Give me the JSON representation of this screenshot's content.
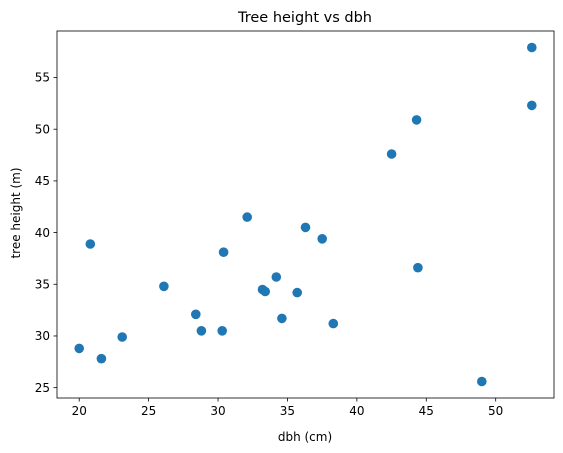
{
  "chart_data": {
    "type": "scatter",
    "title": "Tree height vs dbh",
    "xlabel": "dbh (cm)",
    "ylabel": "tree height (m)",
    "xlim": [
      18.4,
      54.2
    ],
    "ylim": [
      24.0,
      59.5
    ],
    "xticks": [
      20,
      25,
      30,
      35,
      40,
      45,
      50
    ],
    "yticks": [
      25,
      30,
      35,
      40,
      45,
      50,
      55
    ],
    "grid": false,
    "marker_color": "#1f77b4",
    "series": [
      {
        "points": [
          {
            "x": 20.0,
            "y": 28.8
          },
          {
            "x": 20.8,
            "y": 38.9
          },
          {
            "x": 21.6,
            "y": 27.8
          },
          {
            "x": 23.1,
            "y": 29.9
          },
          {
            "x": 26.1,
            "y": 34.8
          },
          {
            "x": 28.4,
            "y": 32.1
          },
          {
            "x": 28.8,
            "y": 30.5
          },
          {
            "x": 30.3,
            "y": 30.5
          },
          {
            "x": 30.4,
            "y": 38.1
          },
          {
            "x": 32.1,
            "y": 41.5
          },
          {
            "x": 33.2,
            "y": 34.5
          },
          {
            "x": 33.4,
            "y": 34.3
          },
          {
            "x": 34.2,
            "y": 35.7
          },
          {
            "x": 34.6,
            "y": 31.7
          },
          {
            "x": 35.7,
            "y": 34.2
          },
          {
            "x": 36.3,
            "y": 40.5
          },
          {
            "x": 37.5,
            "y": 39.4
          },
          {
            "x": 38.3,
            "y": 31.2
          },
          {
            "x": 42.5,
            "y": 47.6
          },
          {
            "x": 44.3,
            "y": 50.9
          },
          {
            "x": 44.4,
            "y": 36.6
          },
          {
            "x": 49.0,
            "y": 25.6
          },
          {
            "x": 52.6,
            "y": 57.9
          },
          {
            "x": 52.6,
            "y": 52.3
          }
        ]
      }
    ]
  }
}
